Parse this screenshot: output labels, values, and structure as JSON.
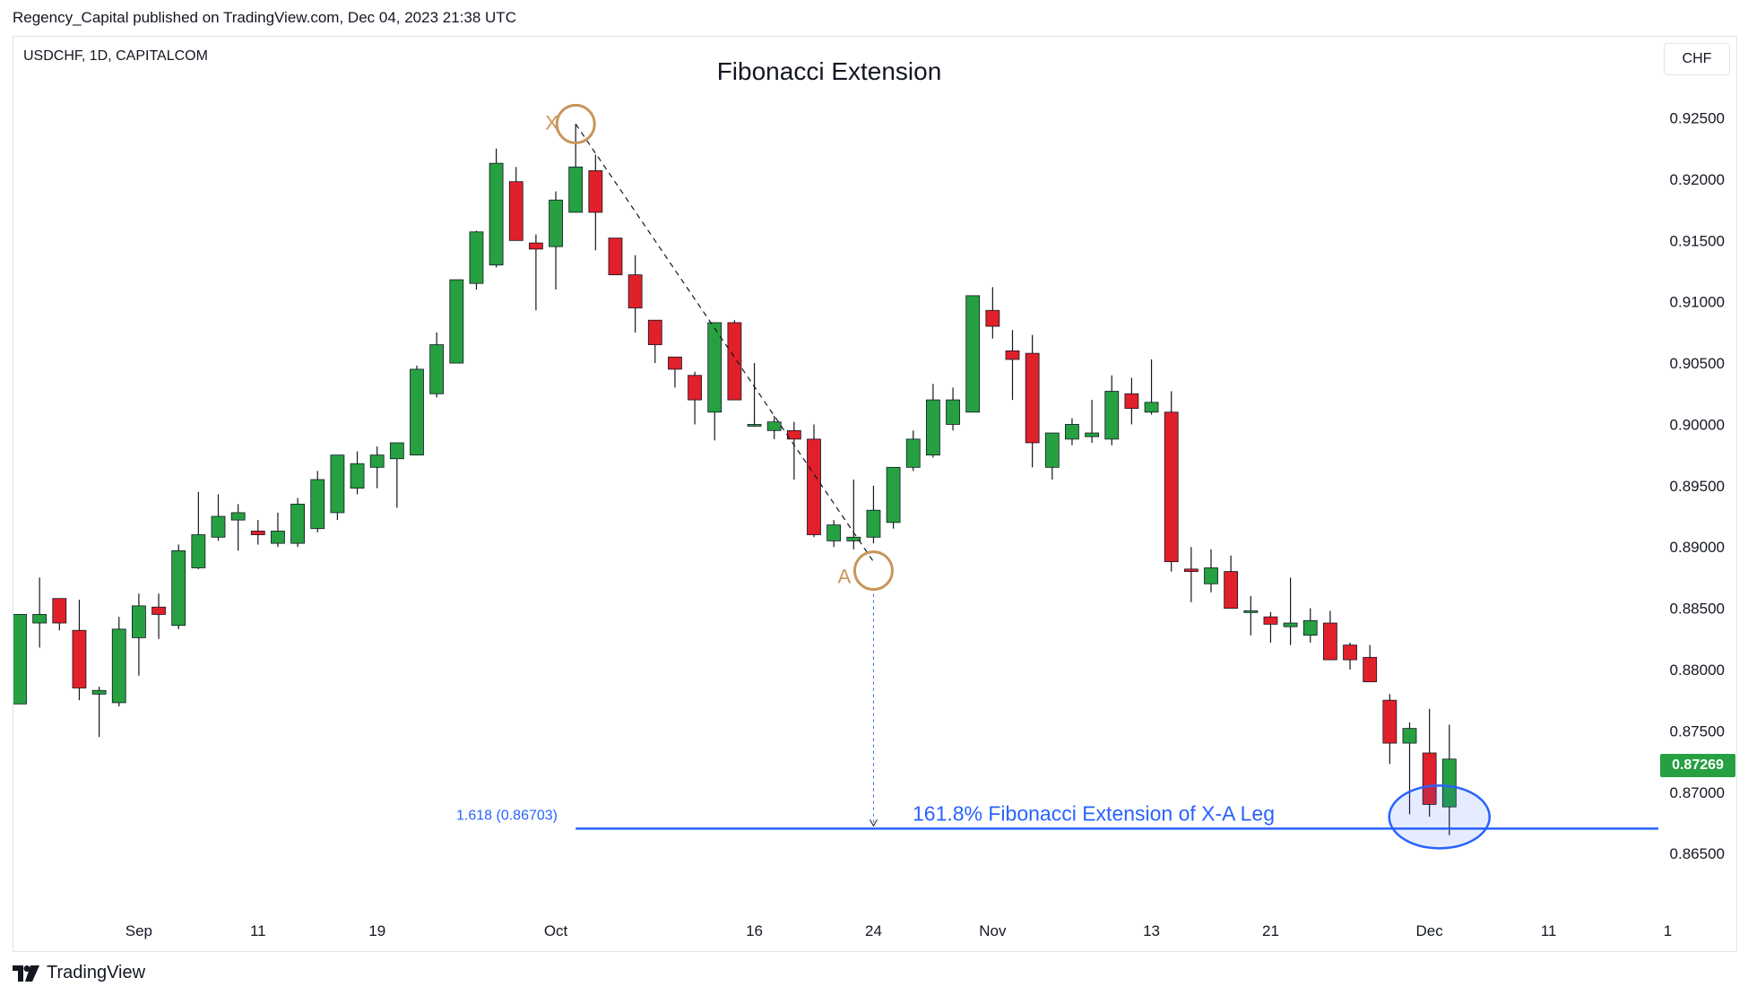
{
  "header": {
    "published_by": "Regency_Capital published on TradingView.com, Dec 04, 2023 21:38 UTC"
  },
  "symbol_label": "USDCHF, 1D, CAPITALCOM",
  "currency": "CHF",
  "current_price": "0.87269",
  "brand": {
    "name": "TradingView",
    "logo_icon": "tradingview-logo-icon"
  },
  "colors": {
    "up": "#26a041",
    "down": "#e0202a",
    "wick": "#131722",
    "fib": "#2962ff",
    "marker": "#c8965a",
    "grid_text": "#131722"
  },
  "chart_data": {
    "type": "candlestick",
    "title": "Fibonacci Extension",
    "y_axis": {
      "range": [
        0.8615,
        0.9295
      ],
      "ticks": [
        "0.86500",
        "0.87000",
        "0.87500",
        "0.88000",
        "0.88500",
        "0.89000",
        "0.89500",
        "0.90000",
        "0.90500",
        "0.91000",
        "0.91500",
        "0.92000",
        "0.92500"
      ]
    },
    "x_axis": {
      "tick_labels": [
        {
          "label": "Sep",
          "slot": 6
        },
        {
          "label": "11",
          "slot": 12
        },
        {
          "label": "19",
          "slot": 18
        },
        {
          "label": "Oct",
          "slot": 27
        },
        {
          "label": "16",
          "slot": 37
        },
        {
          "label": "24",
          "slot": 43
        },
        {
          "label": "Nov",
          "slot": 49
        },
        {
          "label": "13",
          "slot": 57
        },
        {
          "label": "21",
          "slot": 63
        },
        {
          "label": "Dec",
          "slot": 71
        },
        {
          "label": "11",
          "slot": 77
        },
        {
          "label": "1",
          "slot": 83
        }
      ]
    },
    "candles": [
      {
        "o": 0.8772,
        "h": 0.8845,
        "l": 0.8772,
        "c": 0.8845
      },
      {
        "o": 0.8838,
        "h": 0.8875,
        "l": 0.8818,
        "c": 0.8845
      },
      {
        "o": 0.8858,
        "h": 0.8858,
        "l": 0.8832,
        "c": 0.8838
      },
      {
        "o": 0.8832,
        "h": 0.8857,
        "l": 0.8775,
        "c": 0.8785
      },
      {
        "o": 0.878,
        "h": 0.8786,
        "l": 0.8745,
        "c": 0.8783
      },
      {
        "o": 0.8773,
        "h": 0.8843,
        "l": 0.877,
        "c": 0.8833
      },
      {
        "o": 0.8826,
        "h": 0.8862,
        "l": 0.8795,
        "c": 0.8852
      },
      {
        "o": 0.8851,
        "h": 0.8862,
        "l": 0.8825,
        "c": 0.8845
      },
      {
        "o": 0.8836,
        "h": 0.8902,
        "l": 0.8833,
        "c": 0.8897
      },
      {
        "o": 0.8883,
        "h": 0.8945,
        "l": 0.8882,
        "c": 0.891
      },
      {
        "o": 0.8908,
        "h": 0.8943,
        "l": 0.8905,
        "c": 0.8925
      },
      {
        "o": 0.8922,
        "h": 0.8935,
        "l": 0.8897,
        "c": 0.8928
      },
      {
        "o": 0.8913,
        "h": 0.8922,
        "l": 0.8902,
        "c": 0.891
      },
      {
        "o": 0.8903,
        "h": 0.8928,
        "l": 0.89,
        "c": 0.8913
      },
      {
        "o": 0.8903,
        "h": 0.894,
        "l": 0.89,
        "c": 0.8935
      },
      {
        "o": 0.8915,
        "h": 0.8962,
        "l": 0.8912,
        "c": 0.8955
      },
      {
        "o": 0.8928,
        "h": 0.8975,
        "l": 0.8922,
        "c": 0.8975
      },
      {
        "o": 0.8948,
        "h": 0.8978,
        "l": 0.8943,
        "c": 0.8968
      },
      {
        "o": 0.8965,
        "h": 0.8982,
        "l": 0.8948,
        "c": 0.8975
      },
      {
        "o": 0.8972,
        "h": 0.8985,
        "l": 0.8932,
        "c": 0.8985
      },
      {
        "o": 0.8975,
        "h": 0.9048,
        "l": 0.8975,
        "c": 0.9045
      },
      {
        "o": 0.9025,
        "h": 0.9075,
        "l": 0.9022,
        "c": 0.9065
      },
      {
        "o": 0.905,
        "h": 0.9118,
        "l": 0.905,
        "c": 0.9118
      },
      {
        "o": 0.9115,
        "h": 0.9158,
        "l": 0.911,
        "c": 0.9157
      },
      {
        "o": 0.913,
        "h": 0.9225,
        "l": 0.9128,
        "c": 0.9213
      },
      {
        "o": 0.9198,
        "h": 0.921,
        "l": 0.915,
        "c": 0.915
      },
      {
        "o": 0.9148,
        "h": 0.9155,
        "l": 0.9093,
        "c": 0.9143
      },
      {
        "o": 0.9145,
        "h": 0.919,
        "l": 0.911,
        "c": 0.9183
      },
      {
        "o": 0.9173,
        "h": 0.9245,
        "l": 0.9173,
        "c": 0.921
      },
      {
        "o": 0.9207,
        "h": 0.922,
        "l": 0.9142,
        "c": 0.9173
      },
      {
        "o": 0.9152,
        "h": 0.9152,
        "l": 0.9122,
        "c": 0.9122
      },
      {
        "o": 0.9122,
        "h": 0.9138,
        "l": 0.9075,
        "c": 0.9095
      },
      {
        "o": 0.9085,
        "h": 0.9085,
        "l": 0.905,
        "c": 0.9065
      },
      {
        "o": 0.9055,
        "h": 0.9055,
        "l": 0.903,
        "c": 0.9045
      },
      {
        "o": 0.904,
        "h": 0.9043,
        "l": 0.9,
        "c": 0.902
      },
      {
        "o": 0.901,
        "h": 0.9083,
        "l": 0.8987,
        "c": 0.9083
      },
      {
        "o": 0.9083,
        "h": 0.9085,
        "l": 0.902,
        "c": 0.902
      },
      {
        "o": 0.9,
        "h": 0.905,
        "l": 0.8998,
        "c": 0.9
      },
      {
        "o": 0.8995,
        "h": 0.9007,
        "l": 0.8988,
        "c": 0.9002
      },
      {
        "o": 0.8995,
        "h": 0.9002,
        "l": 0.8955,
        "c": 0.8988
      },
      {
        "o": 0.8988,
        "h": 0.9,
        "l": 0.8908,
        "c": 0.891
      },
      {
        "o": 0.8905,
        "h": 0.8922,
        "l": 0.89,
        "c": 0.8918
      },
      {
        "o": 0.8905,
        "h": 0.8955,
        "l": 0.8898,
        "c": 0.8908
      },
      {
        "o": 0.8908,
        "h": 0.895,
        "l": 0.8903,
        "c": 0.893
      },
      {
        "o": 0.892,
        "h": 0.8965,
        "l": 0.8915,
        "c": 0.8965
      },
      {
        "o": 0.8965,
        "h": 0.8995,
        "l": 0.8962,
        "c": 0.8988
      },
      {
        "o": 0.8975,
        "h": 0.9033,
        "l": 0.8973,
        "c": 0.902
      },
      {
        "o": 0.9,
        "h": 0.903,
        "l": 0.8995,
        "c": 0.902
      },
      {
        "o": 0.901,
        "h": 0.9105,
        "l": 0.901,
        "c": 0.9105
      },
      {
        "o": 0.9093,
        "h": 0.9112,
        "l": 0.907,
        "c": 0.908
      },
      {
        "o": 0.906,
        "h": 0.9077,
        "l": 0.902,
        "c": 0.9053
      },
      {
        "o": 0.9058,
        "h": 0.9073,
        "l": 0.8965,
        "c": 0.8985
      },
      {
        "o": 0.8965,
        "h": 0.8993,
        "l": 0.8955,
        "c": 0.8993
      },
      {
        "o": 0.8988,
        "h": 0.9005,
        "l": 0.8983,
        "c": 0.9
      },
      {
        "o": 0.899,
        "h": 0.902,
        "l": 0.8985,
        "c": 0.8993
      },
      {
        "o": 0.8988,
        "h": 0.904,
        "l": 0.8983,
        "c": 0.9027
      },
      {
        "o": 0.9025,
        "h": 0.9038,
        "l": 0.9,
        "c": 0.9013
      },
      {
        "o": 0.901,
        "h": 0.9053,
        "l": 0.9008,
        "c": 0.9018
      },
      {
        "o": 0.901,
        "h": 0.9027,
        "l": 0.888,
        "c": 0.8888
      },
      {
        "o": 0.8882,
        "h": 0.89,
        "l": 0.8855,
        "c": 0.888
      },
      {
        "o": 0.887,
        "h": 0.8898,
        "l": 0.8863,
        "c": 0.8883
      },
      {
        "o": 0.888,
        "h": 0.8893,
        "l": 0.885,
        "c": 0.885
      },
      {
        "o": 0.8848,
        "h": 0.886,
        "l": 0.8828,
        "c": 0.8848
      },
      {
        "o": 0.8843,
        "h": 0.8847,
        "l": 0.8822,
        "c": 0.8837
      },
      {
        "o": 0.8835,
        "h": 0.8875,
        "l": 0.882,
        "c": 0.8838
      },
      {
        "o": 0.8828,
        "h": 0.885,
        "l": 0.8822,
        "c": 0.884
      },
      {
        "o": 0.8838,
        "h": 0.8848,
        "l": 0.8808,
        "c": 0.8808
      },
      {
        "o": 0.882,
        "h": 0.8822,
        "l": 0.88,
        "c": 0.8808
      },
      {
        "o": 0.881,
        "h": 0.882,
        "l": 0.879,
        "c": 0.879
      },
      {
        "o": 0.8775,
        "h": 0.878,
        "l": 0.8723,
        "c": 0.874
      },
      {
        "o": 0.874,
        "h": 0.8757,
        "l": 0.8682,
        "c": 0.8752
      },
      {
        "o": 0.8732,
        "h": 0.8768,
        "l": 0.868,
        "c": 0.869
      },
      {
        "o": 0.8688,
        "h": 0.8755,
        "l": 0.8665,
        "c": 0.8727
      }
    ],
    "annotations": {
      "x_point": {
        "label": "X",
        "slot": 28,
        "price": 0.9245
      },
      "a_point": {
        "label": "A",
        "slot": 43,
        "price": 0.8888
      },
      "fib_level": {
        "price": 0.86703,
        "label": "1.618 (0.86703)",
        "text": "161.8% Fibonacci Extension of X-A Leg"
      },
      "highlight_slots": [
        71,
        72
      ]
    }
  }
}
